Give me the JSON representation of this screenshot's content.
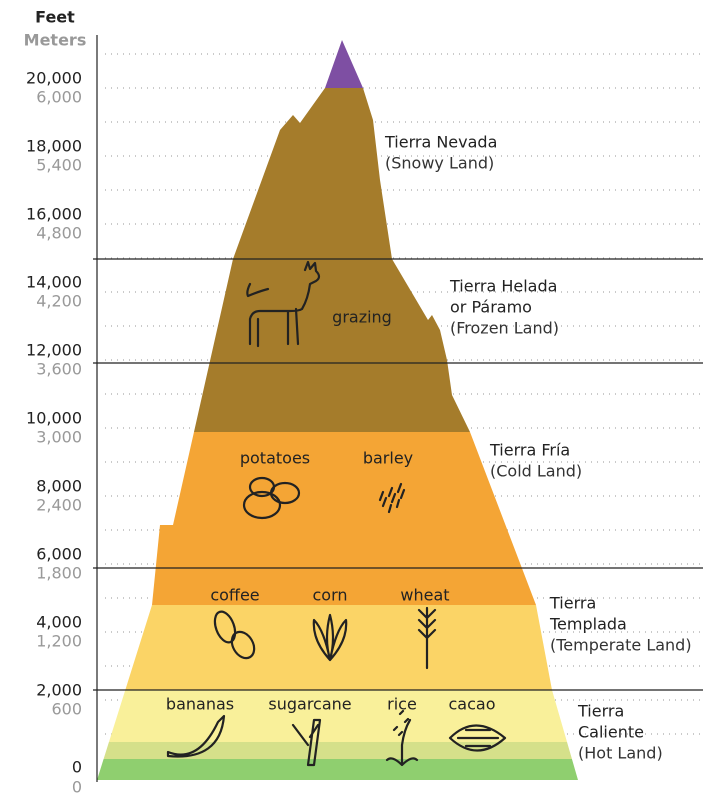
{
  "axis": {
    "feet_title": "Feet",
    "meters_title": "Meters",
    "ticks": [
      {
        "feet": "20,000",
        "meters": "6,000"
      },
      {
        "feet": "18,000",
        "meters": "5,400"
      },
      {
        "feet": "16,000",
        "meters": "4,800"
      },
      {
        "feet": "14,000",
        "meters": "4,200"
      },
      {
        "feet": "12,000",
        "meters": "3,600"
      },
      {
        "feet": "10,000",
        "meters": "3,000"
      },
      {
        "feet": "8,000",
        "meters": "2,400"
      },
      {
        "feet": "6,000",
        "meters": "1,800"
      },
      {
        "feet": "4,000",
        "meters": "1,200"
      },
      {
        "feet": "2,000",
        "meters": "600"
      },
      {
        "feet": "0",
        "meters": "0"
      }
    ]
  },
  "zones": [
    {
      "name_lines": [
        "Tierra Nevada"
      ],
      "translation": "(Snowy Land)"
    },
    {
      "name_lines": [
        "Tierra Helada",
        "or Páramo"
      ],
      "translation": "(Frozen Land)"
    },
    {
      "name_lines": [
        "Tierra Fría"
      ],
      "translation": "(Cold Land)"
    },
    {
      "name_lines": [
        "Tierra",
        "Templada"
      ],
      "translation": "(Temperate Land)"
    },
    {
      "name_lines": [
        "Tierra",
        "Caliente"
      ],
      "translation": "(Hot Land)"
    }
  ],
  "crops": [
    "grazing",
    "potatoes",
    "barley",
    "coffee",
    "corn",
    "wheat",
    "bananas",
    "sugarcane",
    "rice",
    "cacao"
  ]
}
